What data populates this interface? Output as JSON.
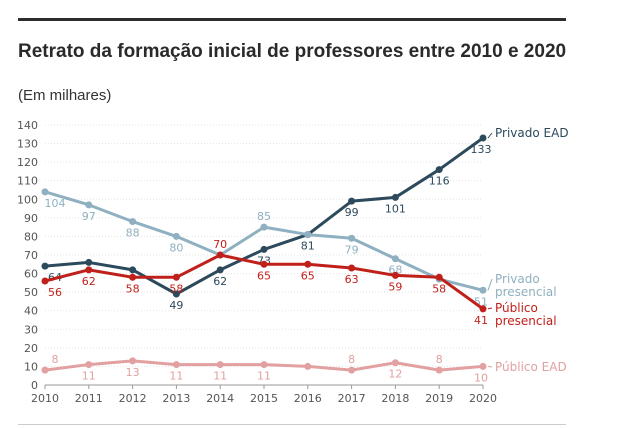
{
  "title": "Retrato da formação inicial de professores entre 2010 e 2020",
  "subtitle": "(Em milhares)",
  "chart_data": {
    "type": "line",
    "title": "Retrato da formação inicial de professores entre 2010 e 2020",
    "subtitle": "(Em milhares)",
    "x": [
      2010,
      2011,
      2012,
      2013,
      2014,
      2015,
      2016,
      2017,
      2018,
      2019,
      2020
    ],
    "ylim": [
      0,
      140
    ],
    "yticks": [
      0,
      10,
      20,
      30,
      40,
      50,
      60,
      70,
      80,
      90,
      100,
      110,
      120,
      130,
      140
    ],
    "grid": true,
    "legend": "inline labels at right end of each line",
    "series": [
      {
        "name": "Privado EAD",
        "color": "#2c4a5c",
        "values": [
          64,
          66,
          62,
          49,
          62,
          73,
          81,
          99,
          101,
          116,
          133
        ],
        "labels": [
          "64",
          "",
          "",
          "49",
          "62",
          "73",
          "81",
          "99",
          "101",
          "116",
          "133"
        ]
      },
      {
        "name": "Privado presencial",
        "color": "#8fb0c0",
        "values": [
          104,
          97,
          88,
          80,
          70,
          85,
          81,
          79,
          68,
          57,
          51
        ],
        "labels": [
          "104",
          "97",
          "88",
          "80",
          "",
          "85",
          "",
          "79",
          "68",
          "",
          "51"
        ]
      },
      {
        "name": "Público presencial",
        "color": "#c0201a",
        "values": [
          56,
          62,
          58,
          58,
          70,
          65,
          65,
          63,
          59,
          58,
          41
        ],
        "labels": [
          "56",
          "62",
          "58",
          "58",
          "70",
          "65",
          "65",
          "63",
          "59",
          "58",
          "41"
        ]
      },
      {
        "name": "Público EAD",
        "color": "#e2a0a0",
        "values": [
          8,
          11,
          13,
          11,
          11,
          11,
          10,
          8,
          12,
          8,
          10
        ],
        "labels": [
          "8",
          "11",
          "13",
          "11",
          "11",
          "11",
          "",
          "8",
          "12",
          "8",
          "10"
        ]
      }
    ]
  }
}
